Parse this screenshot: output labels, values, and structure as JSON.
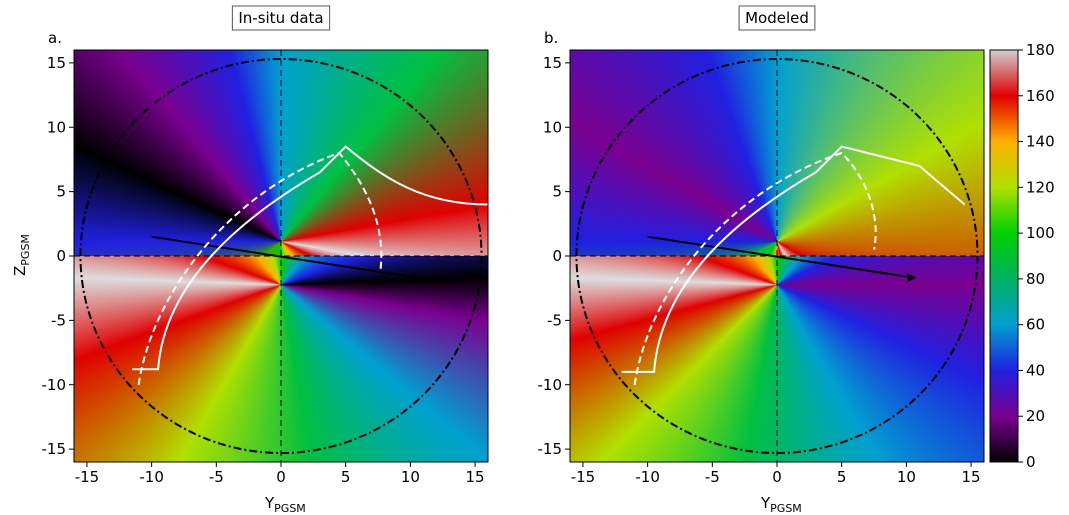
{
  "panels": [
    {
      "label": "a.",
      "title": "In-situ data"
    },
    {
      "label": "b.",
      "title": "Modeled"
    }
  ],
  "xlabel": {
    "main": "Y",
    "sub": "PGSM"
  },
  "ylabel": {
    "main": "Z",
    "sub": "PGSM"
  },
  "xlim": [
    -16,
    16
  ],
  "ylim": [
    -16,
    16
  ],
  "xticks": [
    -15,
    -10,
    -5,
    0,
    5,
    10,
    15
  ],
  "yticks": [
    -15,
    -10,
    -5,
    0,
    5,
    10,
    15
  ],
  "colorbar": {
    "clim": [
      0,
      180
    ],
    "ticks": [
      0,
      20,
      40,
      60,
      80,
      100,
      120,
      140,
      160,
      180
    ],
    "colors": [
      "#000000",
      "#7a0090",
      "#2020e0",
      "#00a0d0",
      "#00b060",
      "#00d000",
      "#b0e000",
      "#ffb000",
      "#e00000",
      "#d0d0d0"
    ]
  }
}
